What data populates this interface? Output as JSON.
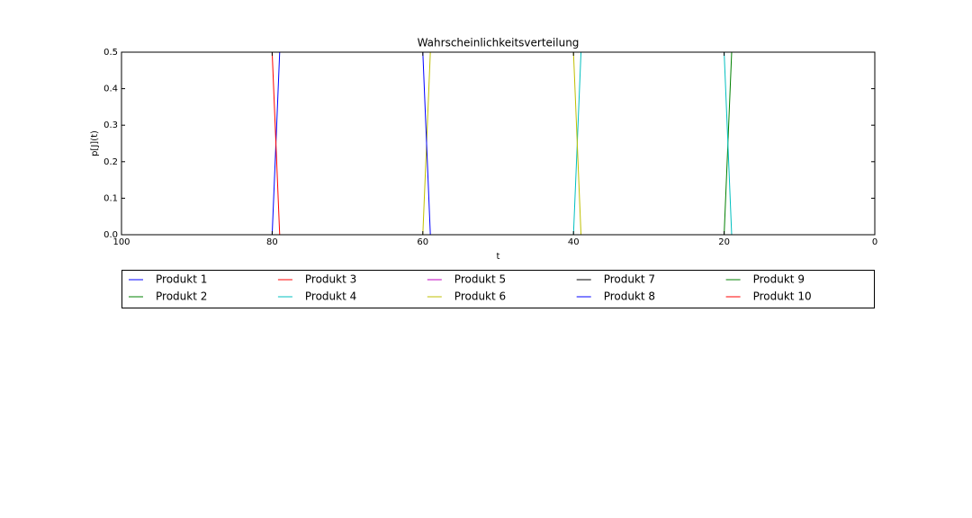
{
  "chart_data": {
    "type": "line",
    "title": "Wahrscheinlichkeitsverteilung",
    "x_label": "t",
    "y_label": "p[J](t)",
    "x": [
      99,
      80,
      79,
      60,
      59,
      40,
      39,
      20,
      19,
      0
    ],
    "series": [
      {
        "name": "Produkt 1",
        "color": "#0000ff",
        "values": [
          0,
          0,
          0,
          0,
          0,
          0,
          0,
          0,
          0,
          0
        ]
      },
      {
        "name": "Produkt 2",
        "color": "#008000",
        "values": [
          0,
          0,
          0,
          0,
          0,
          0,
          0,
          0,
          0.5,
          0.5
        ]
      },
      {
        "name": "Produkt 3",
        "color": "#ff0000",
        "values": [
          0,
          0,
          0,
          0,
          0,
          0,
          0,
          0,
          0,
          0
        ]
      },
      {
        "name": "Produkt 4",
        "color": "#00bfbf",
        "values": [
          0,
          0,
          0,
          0,
          0,
          0,
          0.5,
          0.5,
          0,
          0
        ]
      },
      {
        "name": "Produkt 5",
        "color": "#bf00bf",
        "values": [
          0,
          0,
          0,
          0,
          0,
          0,
          0,
          0,
          0,
          0
        ]
      },
      {
        "name": "Produkt 6",
        "color": "#bfbf00",
        "values": [
          0,
          0,
          0,
          0,
          0.5,
          0.5,
          0,
          0,
          0,
          0
        ]
      },
      {
        "name": "Produkt 7",
        "color": "#000000",
        "values": [
          0,
          0,
          0,
          0,
          0,
          0,
          0,
          0,
          0,
          0
        ]
      },
      {
        "name": "Produkt 8",
        "color": "#0000ff",
        "values": [
          0,
          0,
          0.5,
          0.5,
          0,
          0,
          0,
          0,
          0,
          0
        ]
      },
      {
        "name": "Produkt 9",
        "color": "#008000",
        "values": [
          0,
          0,
          0,
          0,
          0,
          0,
          0,
          0,
          0,
          0
        ]
      },
      {
        "name": "Produkt 10",
        "color": "#ff0000",
        "values": [
          0.5,
          0.5,
          0,
          0,
          0,
          0,
          0,
          0,
          0,
          0
        ]
      }
    ],
    "xlim": [
      100,
      0
    ],
    "xticks": [
      100,
      80,
      60,
      40,
      20,
      0
    ],
    "ylim": [
      0,
      0.5
    ],
    "yticks": [
      {
        "value": 0,
        "label": "0.0"
      },
      {
        "value": 0.1,
        "label": "0.1"
      },
      {
        "value": 0.2,
        "label": "0.2"
      },
      {
        "value": 0.3,
        "label": "0.3"
      },
      {
        "value": 0.4,
        "label": "0.4"
      },
      {
        "value": 0.5,
        "label": "0.5"
      }
    ],
    "legend_columns": 5
  }
}
